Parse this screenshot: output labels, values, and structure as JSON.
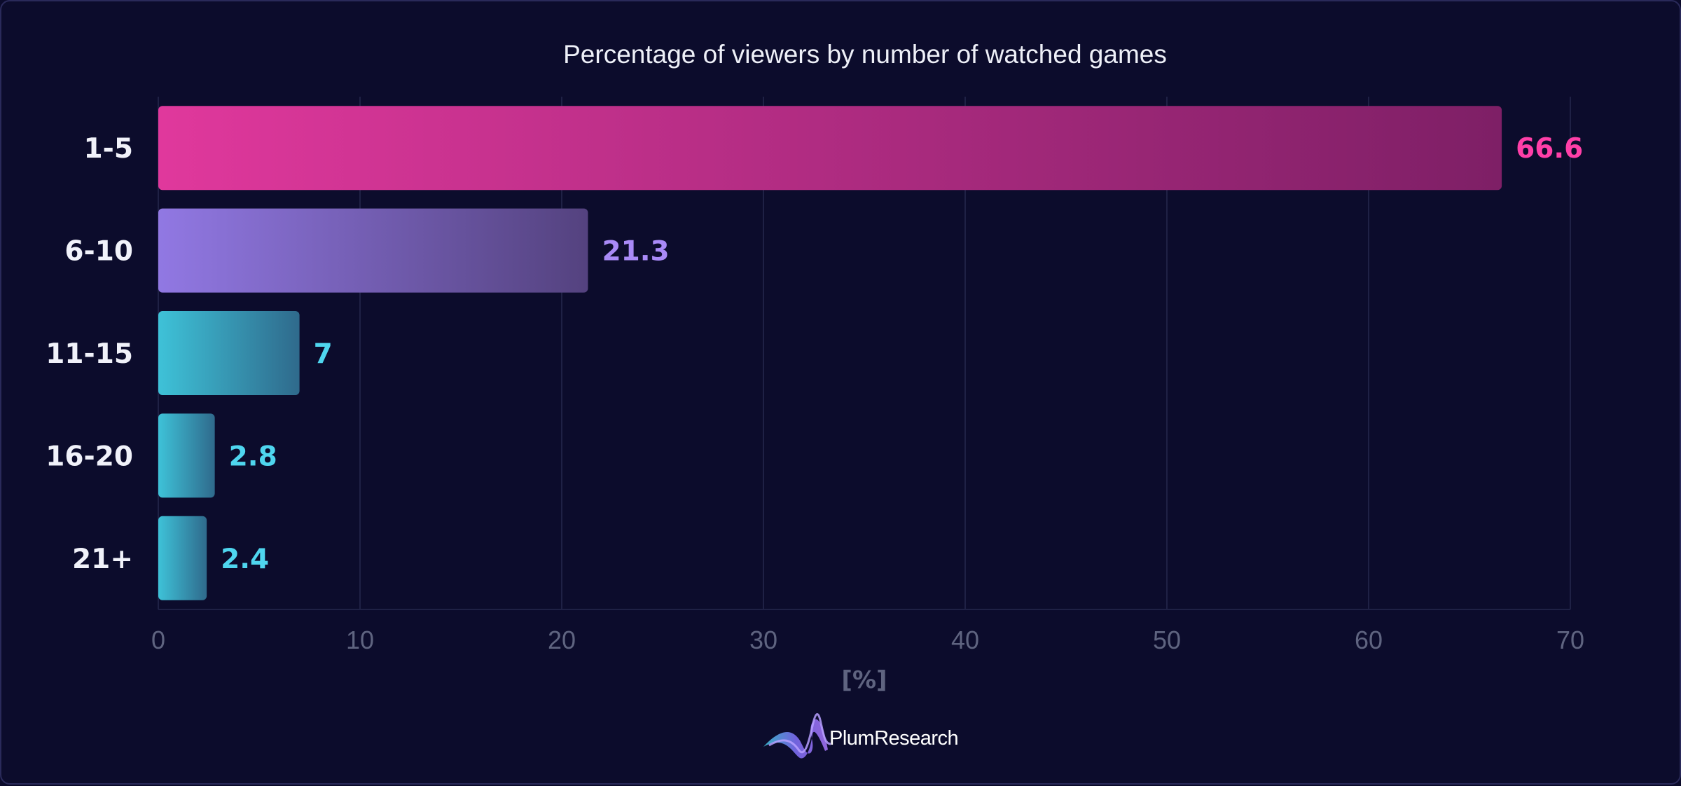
{
  "chart_data": {
    "type": "bar",
    "orientation": "horizontal",
    "title": "Percentage of viewers by number of watched games",
    "xlabel": "[%]",
    "ylabel": "",
    "categories": [
      "1-5",
      "6-10",
      "11-15",
      "16-20",
      "21+"
    ],
    "values": [
      66.6,
      21.3,
      7,
      2.8,
      2.4
    ],
    "value_labels": [
      "66.6",
      "21.3",
      "7",
      "2.8",
      "2.4"
    ],
    "xlim": [
      0,
      70
    ],
    "xticks": [
      0,
      10,
      20,
      30,
      40,
      50,
      60,
      70
    ],
    "grid": true,
    "legend": "none",
    "colors": [
      {
        "start": "#e0389c",
        "end": "#7e1f66",
        "label": "#ff3fa8"
      },
      {
        "start": "#9178e3",
        "end": "#54427f",
        "label": "#a98af7"
      },
      {
        "start": "#3ec2d8",
        "end": "#2f6a8c",
        "label": "#4fd6ef"
      },
      {
        "start": "#3ec2d8",
        "end": "#2f6a8c",
        "label": "#4fd6ef"
      },
      {
        "start": "#3ec2d8",
        "end": "#2f6a8c",
        "label": "#4fd6ef"
      }
    ]
  },
  "branding": {
    "name": "PlumResearch",
    "icon": "plum-wave-logo-icon"
  },
  "colors": {
    "background": "#0c0c2c",
    "grid": "#1f2145",
    "tick_text": "#5f6480"
  }
}
